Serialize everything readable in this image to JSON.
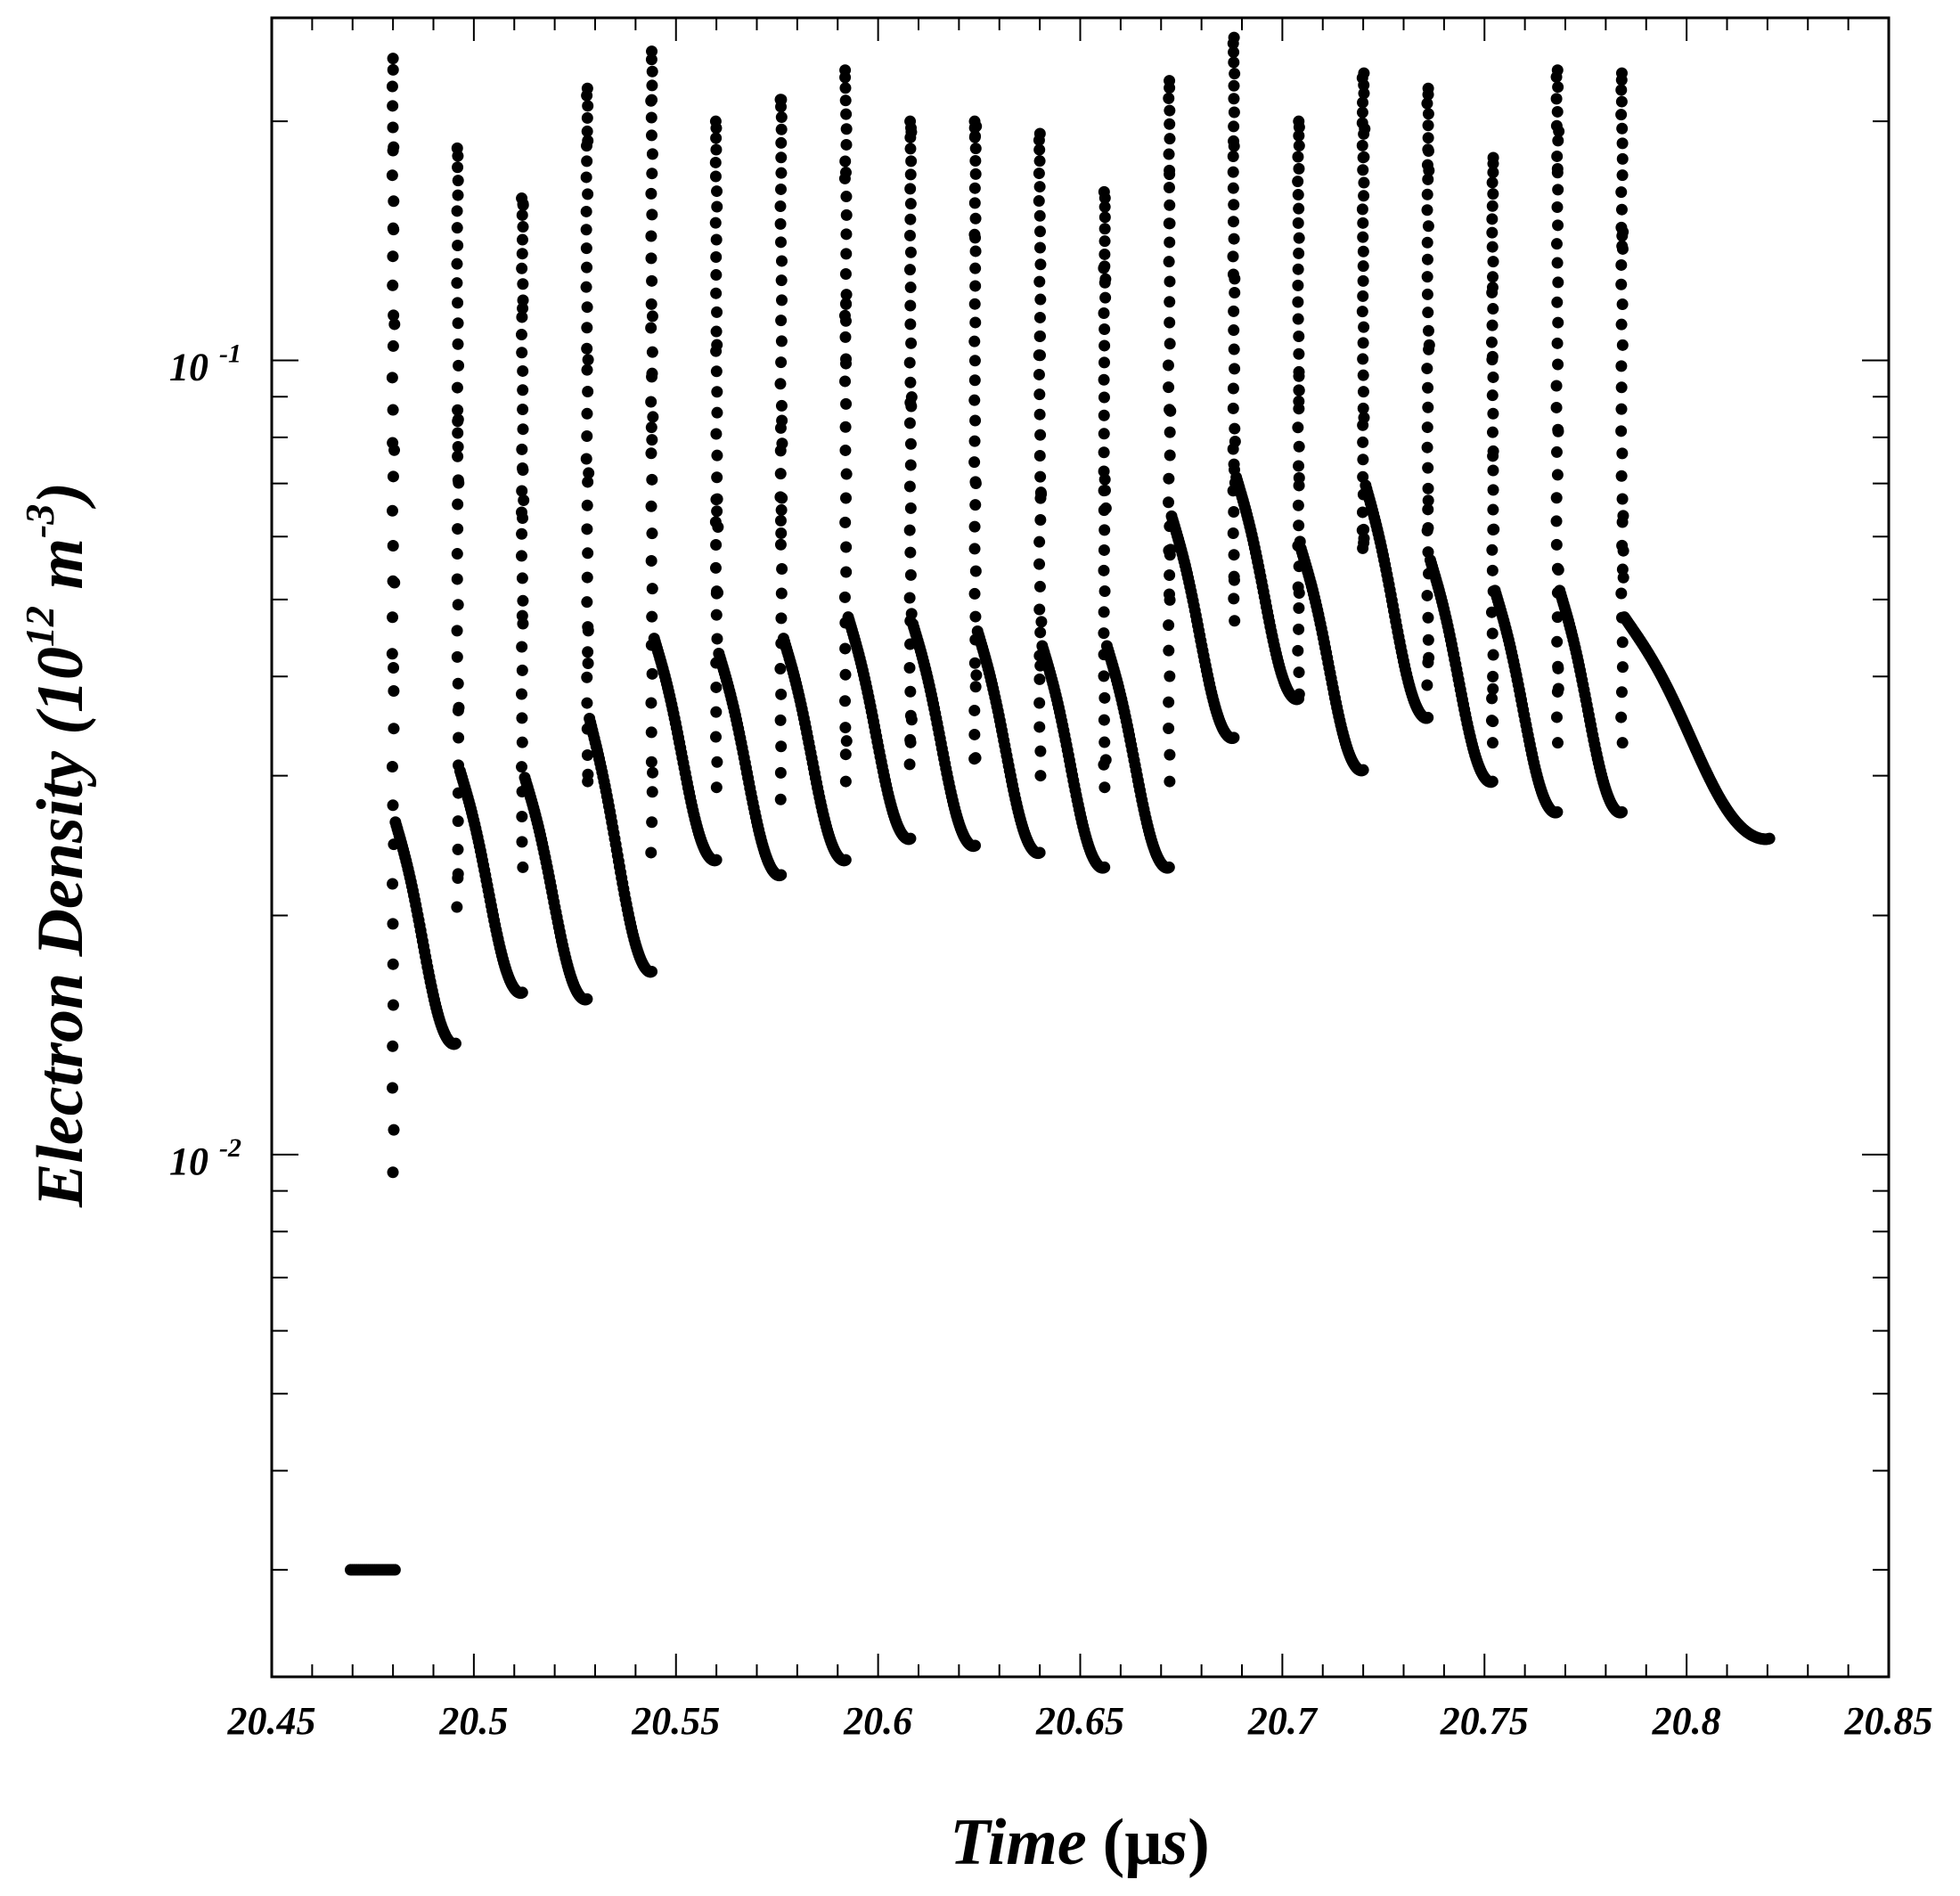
{
  "chart_data": {
    "type": "scatter",
    "title": "",
    "marker_color": "#000000",
    "xlabel": {
      "text": "Time",
      "unit_open": "(",
      "unit_mu": "μ",
      "unit_s": "s",
      "unit_close": ")"
    },
    "ylabel": {
      "prefix": "Electron Density (10",
      "sup": "12",
      "middle": " m",
      "sup2": "-3",
      "suffix": ")"
    },
    "x_range": [
      20.45,
      20.85
    ],
    "y_range": [
      0.0022,
      0.27
    ],
    "y_scale": "log",
    "x_ticks": [
      {
        "value": 20.45,
        "label": "20.45"
      },
      {
        "value": 20.5,
        "label": "20.5"
      },
      {
        "value": 20.55,
        "label": "20.55"
      },
      {
        "value": 20.6,
        "label": "20.6"
      },
      {
        "value": 20.65,
        "label": "20.65"
      },
      {
        "value": 20.7,
        "label": "20.7"
      },
      {
        "value": 20.75,
        "label": "20.75"
      },
      {
        "value": 20.8,
        "label": "20.8"
      },
      {
        "value": 20.85,
        "label": "20.85"
      }
    ],
    "y_major_ticks": [
      {
        "value": 0.01,
        "base": "10",
        "exp": "-2"
      },
      {
        "value": 0.1,
        "base": "10",
        "exp": "-1"
      }
    ],
    "y_minor_ticks": [
      0.003,
      0.004,
      0.005,
      0.006,
      0.007,
      0.008,
      0.009,
      0.02,
      0.03,
      0.04,
      0.05,
      0.06,
      0.07,
      0.08,
      0.09,
      0.2
    ],
    "x_minor_ticks": [
      20.46,
      20.47,
      20.48,
      20.49,
      20.51,
      20.52,
      20.53,
      20.54,
      20.56,
      20.57,
      20.58,
      20.59,
      20.61,
      20.62,
      20.63,
      20.64,
      20.66,
      20.67,
      20.68,
      20.69,
      20.71,
      20.72,
      20.73,
      20.74,
      20.76,
      20.77,
      20.78,
      20.79,
      20.81,
      20.82,
      20.83,
      20.84
    ],
    "baseline": {
      "x_start": 20.4695,
      "x_end": 20.4805,
      "y": 0.003
    },
    "spikes": [
      {
        "t": 20.48,
        "peak": 0.24,
        "end_t": 20.4955,
        "end_y": 0.0138,
        "bottom": 0.0095
      },
      {
        "t": 20.496,
        "peak": 0.185,
        "end_t": 20.512,
        "end_y": 0.016,
        "bottom": 0.0205
      },
      {
        "t": 20.512,
        "peak": 0.16,
        "end_t": 20.528,
        "end_y": 0.0157,
        "bottom": 0.023
      },
      {
        "t": 20.528,
        "peak": 0.22,
        "end_t": 20.544,
        "end_y": 0.017,
        "bottom": 0.0295
      },
      {
        "t": 20.544,
        "peak": 0.245,
        "end_t": 20.56,
        "end_y": 0.0235,
        "bottom": 0.024
      },
      {
        "t": 20.56,
        "peak": 0.2,
        "end_t": 20.576,
        "end_y": 0.0225,
        "bottom": 0.029
      },
      {
        "t": 20.576,
        "peak": 0.213,
        "end_t": 20.592,
        "end_y": 0.0235,
        "bottom": 0.028
      },
      {
        "t": 20.592,
        "peak": 0.232,
        "end_t": 20.608,
        "end_y": 0.025,
        "bottom": 0.0295
      },
      {
        "t": 20.608,
        "peak": 0.2,
        "end_t": 20.624,
        "end_y": 0.0245,
        "bottom": 0.031
      },
      {
        "t": 20.624,
        "peak": 0.2,
        "end_t": 20.64,
        "end_y": 0.024,
        "bottom": 0.0315
      },
      {
        "t": 20.64,
        "peak": 0.193,
        "end_t": 20.656,
        "end_y": 0.023,
        "bottom": 0.03
      },
      {
        "t": 20.656,
        "peak": 0.163,
        "end_t": 20.672,
        "end_y": 0.023,
        "bottom": 0.029
      },
      {
        "t": 20.672,
        "peak": 0.225,
        "end_t": 20.688,
        "end_y": 0.0335,
        "bottom": 0.0295
      },
      {
        "t": 20.688,
        "peak": 0.255,
        "end_t": 20.704,
        "end_y": 0.0375,
        "bottom": 0.047
      },
      {
        "t": 20.704,
        "peak": 0.2,
        "end_t": 20.72,
        "end_y": 0.0305,
        "bottom": 0.038
      },
      {
        "t": 20.72,
        "peak": 0.23,
        "end_t": 20.736,
        "end_y": 0.0355,
        "bottom": 0.058
      },
      {
        "t": 20.736,
        "peak": 0.22,
        "end_t": 20.752,
        "end_y": 0.0295,
        "bottom": 0.039
      },
      {
        "t": 20.752,
        "peak": 0.18,
        "end_t": 20.768,
        "end_y": 0.027,
        "bottom": 0.033
      },
      {
        "t": 20.768,
        "peak": 0.232,
        "end_t": 20.784,
        "end_y": 0.027,
        "bottom": 0.033
      },
      {
        "t": 20.784,
        "peak": 0.23,
        "end_t": 20.8205,
        "end_y": 0.025,
        "bottom": 0.033
      }
    ]
  }
}
